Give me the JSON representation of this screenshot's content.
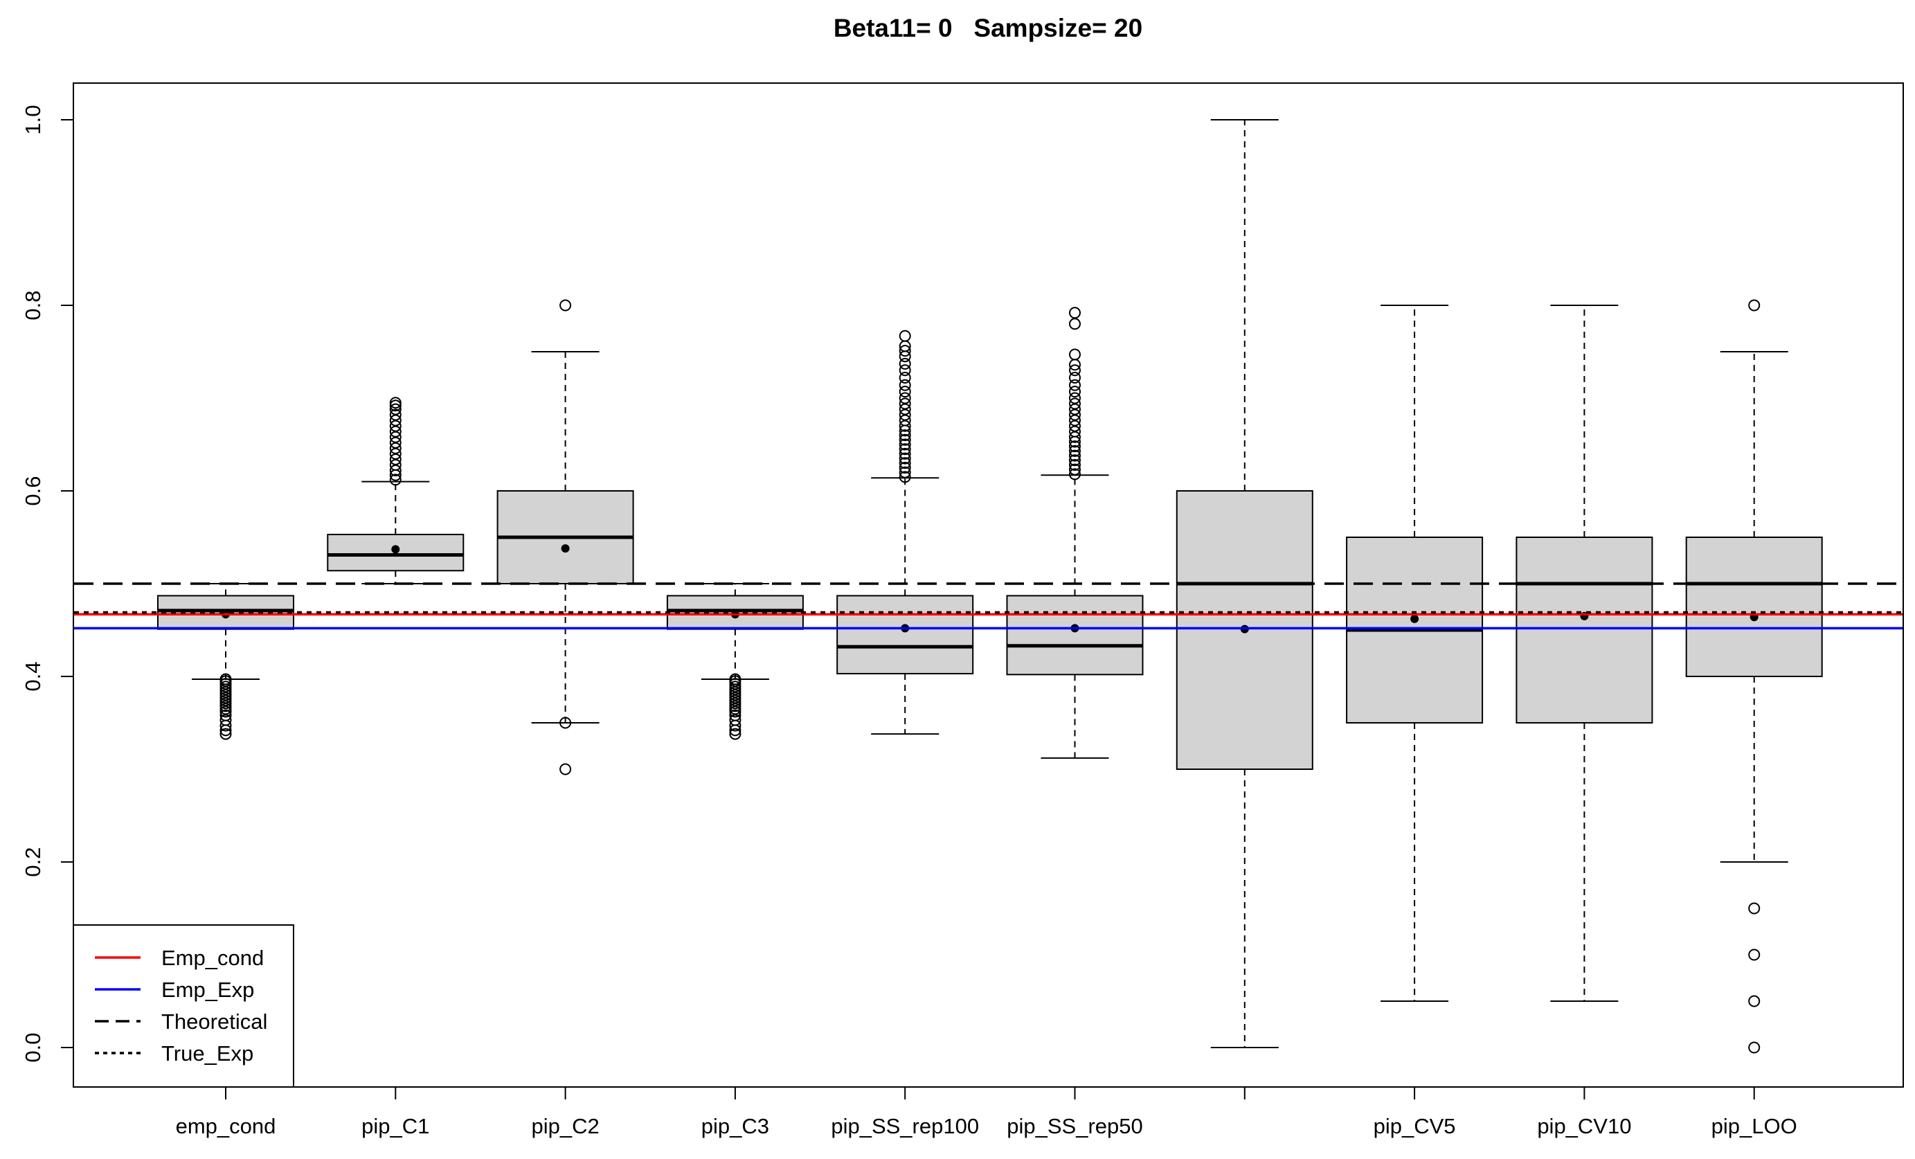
{
  "chart_data": {
    "type": "box",
    "title": "Beta11= 0   Sampsize= 20",
    "xlabel": "",
    "ylabel": "",
    "ylim": [
      -0.04,
      1.04
    ],
    "yticks": [
      0.0,
      0.2,
      0.4,
      0.6,
      0.8,
      1.0
    ],
    "ytick_labels": [
      "0.0",
      "0.2",
      "0.4",
      "0.6",
      "0.8",
      "1.0"
    ],
    "grid": false,
    "legend_position": "bottom-left",
    "box_fill": "#d3d3d3",
    "categories": [
      "emp_cond",
      "pip_C1",
      "pip_C2",
      "pip_C3",
      "pip_SS_rep100",
      "pip_SS_rep50",
      "",
      "pip_CV5",
      "pip_CV10",
      "pip_LOO"
    ],
    "boxes": [
      {
        "label": "emp_cond",
        "whisker_low": 0.397,
        "q1": 0.451,
        "median": 0.471,
        "q3": 0.487,
        "whisker_high": 0.5,
        "mean": 0.467,
        "outliers": [
          0.397,
          0.395,
          0.392,
          0.389,
          0.386,
          0.383,
          0.38,
          0.377,
          0.374,
          0.371,
          0.368,
          0.365,
          0.362,
          0.358,
          0.353,
          0.347,
          0.342,
          0.338
        ]
      },
      {
        "label": "pip_C1",
        "whisker_low": 0.5,
        "q1": 0.514,
        "median": 0.531,
        "q3": 0.553,
        "whisker_high": 0.61,
        "mean": 0.537,
        "outliers": [
          0.612,
          0.617,
          0.622,
          0.628,
          0.634,
          0.64,
          0.646,
          0.652,
          0.658,
          0.664,
          0.67,
          0.676,
          0.682,
          0.688,
          0.692,
          0.695
        ]
      },
      {
        "label": "pip_C2",
        "whisker_low": 0.35,
        "q1": 0.5,
        "median": 0.55,
        "q3": 0.6,
        "whisker_high": 0.75,
        "mean": 0.538,
        "outliers": [
          0.8,
          0.35,
          0.3
        ]
      },
      {
        "label": "pip_C3",
        "whisker_low": 0.397,
        "q1": 0.451,
        "median": 0.471,
        "q3": 0.487,
        "whisker_high": 0.5,
        "mean": 0.467,
        "outliers": [
          0.397,
          0.395,
          0.392,
          0.389,
          0.386,
          0.383,
          0.38,
          0.377,
          0.374,
          0.371,
          0.368,
          0.365,
          0.362,
          0.358,
          0.353,
          0.347,
          0.342,
          0.338
        ]
      },
      {
        "label": "pip_SS_rep100",
        "whisker_low": 0.338,
        "q1": 0.403,
        "median": 0.432,
        "q3": 0.487,
        "whisker_high": 0.614,
        "mean": 0.452,
        "outliers": [
          0.615,
          0.62,
          0.625,
          0.63,
          0.635,
          0.64,
          0.645,
          0.65,
          0.655,
          0.66,
          0.665,
          0.67,
          0.676,
          0.682,
          0.688,
          0.694,
          0.7,
          0.707,
          0.714,
          0.722,
          0.73,
          0.737,
          0.745,
          0.751,
          0.756,
          0.767
        ]
      },
      {
        "label": "pip_SS_rep50",
        "whisker_low": 0.312,
        "q1": 0.402,
        "median": 0.433,
        "q3": 0.487,
        "whisker_high": 0.617,
        "mean": 0.452,
        "outliers": [
          0.618,
          0.623,
          0.628,
          0.633,
          0.638,
          0.643,
          0.648,
          0.653,
          0.658,
          0.664,
          0.67,
          0.676,
          0.682,
          0.688,
          0.694,
          0.7,
          0.707,
          0.714,
          0.722,
          0.73,
          0.736,
          0.747,
          0.78,
          0.792
        ]
      },
      {
        "label": "",
        "whisker_low": 0.0,
        "q1": 0.3,
        "median": 0.5,
        "q3": 0.6,
        "whisker_high": 1.0,
        "mean": 0.451,
        "outliers": []
      },
      {
        "label": "pip_CV5",
        "whisker_low": 0.05,
        "q1": 0.35,
        "median": 0.45,
        "q3": 0.55,
        "whisker_high": 0.8,
        "mean": 0.462,
        "outliers": []
      },
      {
        "label": "pip_CV10",
        "whisker_low": 0.05,
        "q1": 0.35,
        "median": 0.5,
        "q3": 0.55,
        "whisker_high": 0.8,
        "mean": 0.465,
        "outliers": []
      },
      {
        "label": "pip_LOO",
        "whisker_low": 0.2,
        "q1": 0.4,
        "median": 0.5,
        "q3": 0.55,
        "whisker_high": 0.75,
        "mean": 0.464,
        "outliers": [
          0.8,
          0.15,
          0.1,
          0.05,
          0.0
        ]
      }
    ],
    "reference_lines": [
      {
        "name": "Emp_cond",
        "y": 0.467,
        "color": "#ff0000",
        "style": "solid"
      },
      {
        "name": "Emp_Exp",
        "y": 0.452,
        "color": "#0000ff",
        "style": "solid"
      },
      {
        "name": "Theoretical",
        "y": 0.5,
        "color": "#000000",
        "style": "dashed"
      },
      {
        "name": "True_Exp",
        "y": 0.469,
        "color": "#000000",
        "style": "dotted"
      }
    ]
  }
}
